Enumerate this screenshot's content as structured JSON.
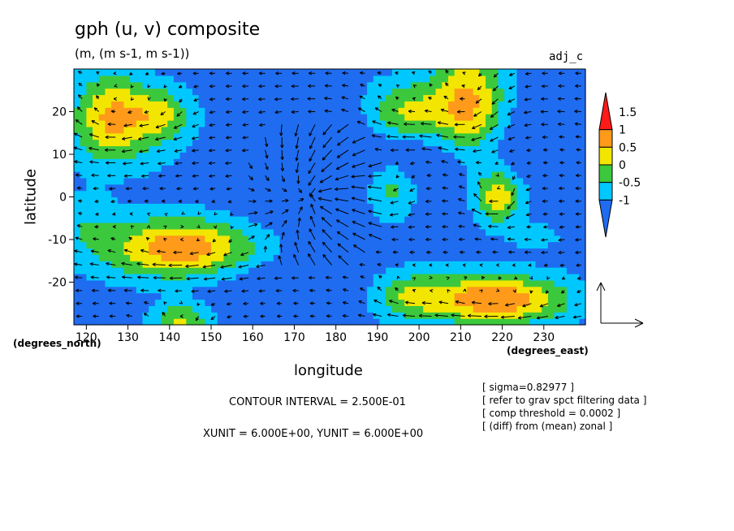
{
  "chart_data": {
    "type": "heatmap",
    "title": "gph (u, v) composite",
    "units_line": "(m, (m s-1, m s-1))",
    "run_label": "adj_c",
    "xlabel": "longitude",
    "ylabel": "latitude",
    "x_unit_label": "(degrees_east)",
    "y_unit_label": "(degrees_north)",
    "xlim": [
      117,
      240
    ],
    "ylim": [
      -30,
      30
    ],
    "x_ticks": [
      120,
      130,
      140,
      150,
      160,
      170,
      180,
      190,
      200,
      210,
      220,
      230
    ],
    "y_ticks": [
      -20,
      -10,
      0,
      10,
      20
    ],
    "colorbar": {
      "levels": [
        -1,
        -0.5,
        0,
        0.5,
        1,
        1.5
      ],
      "labels": [
        "1.5",
        "1",
        "0.5",
        "0",
        "-0.5",
        "-1"
      ],
      "colors_low_to_high": [
        "#1f6cf0",
        "#00c8ff",
        "#3cc83c",
        "#f2e600",
        "#ff9a1a",
        "#ff1a1a"
      ],
      "extend": "both"
    },
    "field_blobs": [
      {
        "x": 143,
        "y": -12,
        "sx": 13,
        "sy": 5,
        "value": 2.1
      },
      {
        "x": 126,
        "y": 20,
        "sx": 6,
        "sy": 7,
        "value": 1.4
      },
      {
        "x": 138,
        "y": 20,
        "sx": 5,
        "sy": 4,
        "value": 1.0
      },
      {
        "x": 130,
        "y": 15,
        "sx": 10,
        "sy": 6,
        "value": 0.6
      },
      {
        "x": 197,
        "y": 20,
        "sx": 7,
        "sy": 5,
        "value": 1.3
      },
      {
        "x": 193,
        "y": 2,
        "sx": 4,
        "sy": 5,
        "value": 0.9
      },
      {
        "x": 212,
        "y": 22,
        "sx": 6,
        "sy": 9,
        "value": 1.8
      },
      {
        "x": 219,
        "y": 0,
        "sx": 3.5,
        "sy": 4,
        "value": 1.6
      },
      {
        "x": 228,
        "y": -9,
        "sx": 6,
        "sy": 3,
        "value": 0.3
      },
      {
        "x": 218,
        "y": -24,
        "sx": 12,
        "sy": 4,
        "value": 2.2
      },
      {
        "x": 197,
        "y": -23,
        "sx": 6,
        "sy": 4,
        "value": 0.9
      },
      {
        "x": 143,
        "y": -29,
        "sx": 5,
        "sy": 3,
        "value": 1.3
      },
      {
        "x": 120,
        "y": -6,
        "sx": 5,
        "sy": 5,
        "value": 0.5
      },
      {
        "x": 175,
        "y": 18,
        "sx": 10,
        "sy": 5,
        "value": -0.5
      },
      {
        "x": 170,
        "y": 2,
        "sx": 12,
        "sy": 6,
        "value": -0.6
      },
      {
        "x": 200,
        "y": 10,
        "sx": 12,
        "sy": 4,
        "value": -0.5
      },
      {
        "x": 165,
        "y": -20,
        "sx": 15,
        "sy": 6,
        "value": -0.4
      },
      {
        "x": 230,
        "y": 15,
        "sx": 10,
        "sy": 5,
        "value": -0.4
      }
    ],
    "field_base": -1.2,
    "vector_reference": {
      "xunit": 6.0,
      "yunit": 6.0
    }
  },
  "annotations": {
    "contour_interval": "CONTOUR INTERVAL = 2.500E-01",
    "xy_unit": "XUNIT = 6.000E+00, YUNIT = 6.000E+00",
    "sigma": "[ sigma=0.82977 ]",
    "filter": "[ refer to grav spct filtering data ]",
    "threshold": "[ comp threshold = 0.0002 ]",
    "diff": "[ (diff) from (mean) zonal ]"
  }
}
